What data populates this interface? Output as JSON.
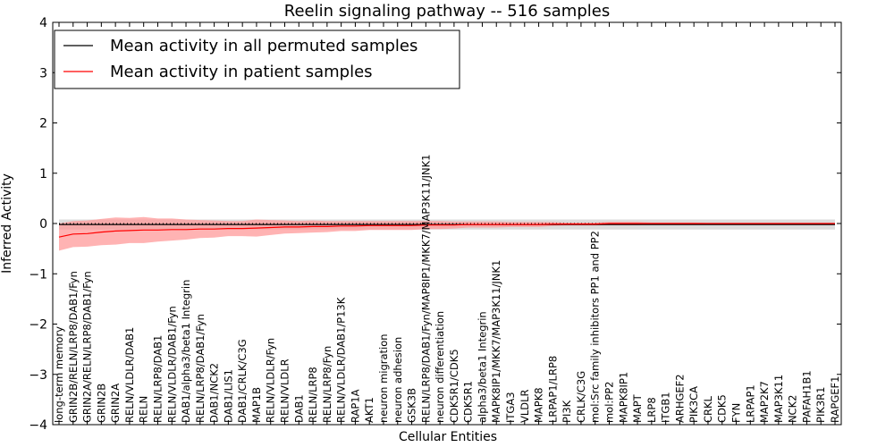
{
  "chart_data": {
    "type": "line",
    "title": "Reelin signaling pathway -- 516 samples",
    "xlabel": "Cellular Entities",
    "ylabel": "Inferred Activity",
    "ylim": [
      -4,
      4
    ],
    "yticks": [
      -4,
      -3,
      -2,
      -1,
      0,
      1,
      2,
      3,
      4
    ],
    "ytick_labels": [
      "−4",
      "−3",
      "−2",
      "−1",
      "0",
      "1",
      "2",
      "3",
      "4"
    ],
    "grid": false,
    "legend_position": "top-left",
    "categories": [
      "long-term memory",
      "GRIN2B/RELN/LRP8/DAB1/Fyn",
      "GRIN2A/RELN/LRP8/DAB1/Fyn",
      "GRIN2B",
      "GRIN2A",
      "RELN/VLDLR/DAB1",
      "RELN",
      "RELN/LRP8/DAB1",
      "RELN/VLDLR/DAB1/Fyn",
      "DAB1/alpha3/beta1 Integrin",
      "RELN/LRP8/DAB1/Fyn",
      "DAB1/NCK2",
      "DAB1/LIS1",
      "DAB1/CRLK/C3G",
      "MAP1B",
      "RELN/VLDLR/Fyn",
      "RELN/VLDLR",
      "DAB1",
      "RELN/LRP8",
      "RELN/LRP8/Fyn",
      "RELN/VLDLR/DAB1/P13K",
      "RAP1A",
      "AKT1",
      "neuron migration",
      "neuron adhesion",
      "GSK3B",
      "RELN/LRP8/DAB1/Fyn/MAP8IP1/MKK7/MAP3K11/JNK1",
      "neuron differentiation",
      "CDK5R1/CDK5",
      "CDK5R1",
      "alpha3/beta1 Integrin",
      "MAPK8IP1/MKK7/MAP3K11/JNK1",
      "ITGA3",
      "VLDLR",
      "MAPK8",
      "LRPAP1/LRP8",
      "PI3K",
      "CRLK/C3G",
      "mol:Src family inhibitors PP1 and PP2",
      "mol:PP2",
      "MAPK8IP1",
      "MAPT",
      "LRP8",
      "ITGB1",
      "ARHGEF2",
      "PIK3CA",
      "CRKL",
      "CDK5",
      "FYN",
      "LRPAP1",
      "MAP2K7",
      "MAP3K11",
      "NCK2",
      "PAFAH1B1",
      "PIK3R1",
      "RAPGEF1"
    ],
    "series": [
      {
        "name": "Mean activity in all permuted samples",
        "color": "#000000",
        "band_color": "#bfbfbf",
        "values": [
          -0.02,
          -0.02,
          -0.02,
          -0.02,
          -0.02,
          -0.02,
          -0.02,
          -0.02,
          -0.02,
          -0.02,
          -0.02,
          -0.02,
          -0.02,
          -0.02,
          -0.02,
          -0.02,
          -0.02,
          -0.02,
          -0.02,
          -0.02,
          -0.02,
          -0.02,
          -0.02,
          -0.02,
          -0.02,
          -0.02,
          -0.02,
          -0.02,
          -0.02,
          -0.02,
          -0.02,
          -0.02,
          -0.02,
          -0.02,
          -0.02,
          -0.02,
          -0.02,
          -0.02,
          -0.02,
          -0.02,
          -0.02,
          -0.02,
          -0.02,
          -0.02,
          -0.02,
          -0.02,
          -0.02,
          -0.02,
          -0.02,
          -0.02,
          -0.02,
          -0.02,
          -0.02,
          -0.02,
          -0.02,
          -0.02
        ],
        "band": [
          0.1,
          0.1,
          0.1,
          0.1,
          0.1,
          0.1,
          0.1,
          0.1,
          0.1,
          0.1,
          0.1,
          0.1,
          0.1,
          0.1,
          0.1,
          0.1,
          0.1,
          0.1,
          0.1,
          0.1,
          0.1,
          0.1,
          0.1,
          0.1,
          0.1,
          0.1,
          0.1,
          0.1,
          0.1,
          0.1,
          0.1,
          0.1,
          0.1,
          0.1,
          0.1,
          0.1,
          0.1,
          0.1,
          0.1,
          0.1,
          0.1,
          0.1,
          0.1,
          0.1,
          0.1,
          0.1,
          0.1,
          0.1,
          0.1,
          0.1,
          0.1,
          0.1,
          0.1,
          0.1,
          0.1,
          0.1
        ]
      },
      {
        "name": "Mean activity in patient samples",
        "color": "#ff0000",
        "band_color": "#ff9a9a",
        "values": [
          -0.27,
          -0.21,
          -0.2,
          -0.17,
          -0.15,
          -0.14,
          -0.13,
          -0.13,
          -0.12,
          -0.12,
          -0.11,
          -0.11,
          -0.1,
          -0.1,
          -0.09,
          -0.08,
          -0.07,
          -0.07,
          -0.06,
          -0.06,
          -0.05,
          -0.05,
          -0.04,
          -0.04,
          -0.04,
          -0.04,
          -0.03,
          -0.03,
          -0.03,
          -0.02,
          -0.02,
          -0.02,
          -0.02,
          -0.02,
          -0.02,
          -0.01,
          -0.01,
          -0.01,
          -0.01,
          0.0,
          0.0,
          0.0,
          0.0,
          0.0,
          0.0,
          0.0,
          0.0,
          0.0,
          0.0,
          0.0,
          0.0,
          0.0,
          0.0,
          0.0,
          0.0,
          0.0
        ],
        "band": [
          0.27,
          0.26,
          0.26,
          0.26,
          0.27,
          0.25,
          0.26,
          0.23,
          0.22,
          0.2,
          0.18,
          0.17,
          0.15,
          0.15,
          0.17,
          0.15,
          0.13,
          0.12,
          0.12,
          0.11,
          0.1,
          0.1,
          0.09,
          0.09,
          0.09,
          0.09,
          0.08,
          0.08,
          0.07,
          0.06,
          0.06,
          0.06,
          0.05,
          0.05,
          0.05,
          0.04,
          0.03,
          0.03,
          0.03,
          0.03,
          0.03,
          0.03,
          0.02,
          0.02,
          0.02,
          0.02,
          0.01,
          0.01,
          0.01,
          0.01,
          0.01,
          0.01,
          0.01,
          0.01,
          0.01,
          0.01
        ]
      }
    ]
  }
}
